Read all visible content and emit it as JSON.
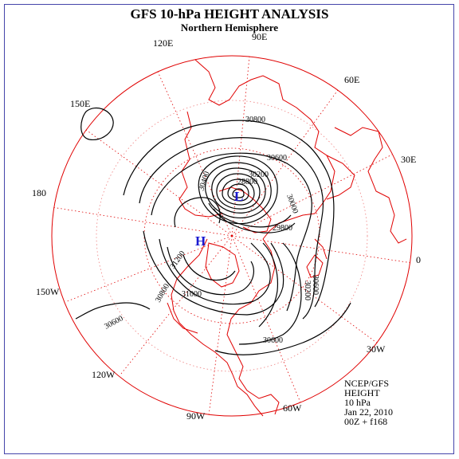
{
  "header": {
    "title": "GFS 10-hPa HEIGHT ANALYSIS",
    "subtitle": "Northern Hemisphere"
  },
  "longitude_labels": {
    "e90": "90E",
    "e120": "120E",
    "e60": "60E",
    "e150": "150E",
    "e30": "30E",
    "d180": "180",
    "d0": "0",
    "w150": "150W",
    "w30": "30W",
    "w120": "120W",
    "w60": "60W",
    "w90": "90W"
  },
  "contour_labels": [
    "30800",
    "30600",
    "30200",
    "28800",
    "30400",
    "30000",
    "29800",
    "31200",
    "31000",
    "30800",
    "30600",
    "30200",
    "30600",
    "30600"
  ],
  "centers": {
    "low": "L",
    "high": "H"
  },
  "info": {
    "line1": "NCEP/GFS",
    "line2": "HEIGHT",
    "line3": "10 hPa",
    "line4": "Jan 22, 2010",
    "line5": "00Z + f168"
  },
  "colors": {
    "map_lines": "#e00000",
    "contours": "#000000",
    "centers": "#1a1ad0",
    "frame": "#4444aa"
  }
}
